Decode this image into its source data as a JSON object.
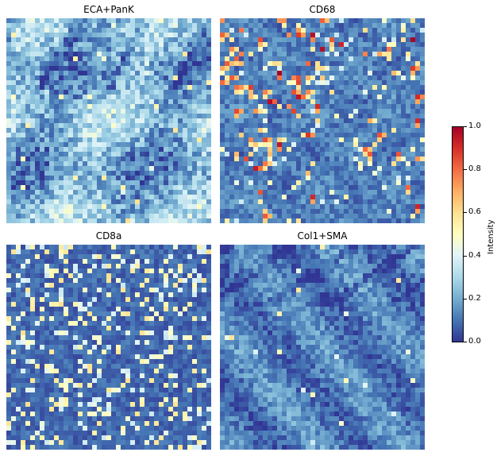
{
  "panels": [
    {
      "title": "ECA+PanK",
      "seed": 11,
      "base": 0.22,
      "noise": 0.13,
      "bright_spots": 40,
      "hot_spots": 0,
      "texture": "tissue"
    },
    {
      "title": "CD68",
      "seed": 23,
      "base": 0.12,
      "noise": 0.07,
      "bright_spots": 120,
      "hot_spots": 90,
      "texture": "cells"
    },
    {
      "title": "CD8a",
      "seed": 37,
      "base": 0.08,
      "noise": 0.05,
      "bright_spots": 420,
      "hot_spots": 0,
      "texture": "dots"
    },
    {
      "title": "Col1+SMA",
      "seed": 53,
      "base": 0.12,
      "noise": 0.08,
      "bright_spots": 20,
      "hot_spots": 0,
      "texture": "fibers"
    }
  ],
  "colorbar": {
    "label": "Intensity",
    "ticks": [
      "0.0",
      "0.2",
      "0.4",
      "0.6",
      "0.8",
      "1.0"
    ],
    "colormap": [
      "#313695",
      "#4575b4",
      "#74add1",
      "#abd9e9",
      "#e0f3f8",
      "#ffffbf",
      "#fee090",
      "#fdae61",
      "#f46d43",
      "#d73027",
      "#a50026"
    ]
  }
}
